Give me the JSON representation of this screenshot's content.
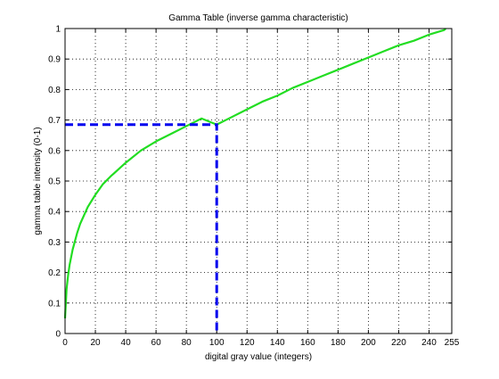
{
  "chart_data": {
    "type": "line",
    "title": "Gamma Table (inverse gamma characteristic)",
    "xlabel": "digital gray value (integers)",
    "ylabel": "gamma table intensity (0-1)",
    "xlim": [
      0,
      255
    ],
    "ylim": [
      0,
      1
    ],
    "xticks": [
      0,
      20,
      40,
      60,
      80,
      100,
      120,
      140,
      160,
      180,
      200,
      220,
      240,
      255
    ],
    "yticks": [
      0,
      0.1,
      0.2,
      0.3,
      0.4,
      0.5,
      0.6,
      0.7,
      0.8,
      0.9,
      1
    ],
    "ytick_labels": [
      "0",
      "0.1",
      "0.2",
      "0.3",
      "0.4",
      "0.5",
      "0.6",
      "0.7",
      "0.8",
      "0.9",
      "1"
    ],
    "grid": true,
    "grid_style": "dotted",
    "series": [
      {
        "color": "#22dd22",
        "style": "solid",
        "x": [
          0,
          1,
          2,
          3,
          5,
          8,
          10,
          15,
          20,
          25,
          30,
          40,
          50,
          60,
          70,
          80,
          90,
          100,
          110,
          120,
          130,
          140,
          150,
          160,
          170,
          180,
          190,
          200,
          210,
          220,
          230,
          240,
          250,
          251
        ],
        "y": [
          0.05,
          0.145,
          0.19,
          0.225,
          0.275,
          0.33,
          0.36,
          0.415,
          0.455,
          0.49,
          0.515,
          0.56,
          0.6,
          0.63,
          0.655,
          0.68,
          0.705,
          0.685,
          0.71,
          0.735,
          0.76,
          0.78,
          0.805,
          0.825,
          0.845,
          0.865,
          0.885,
          0.905,
          0.925,
          0.945,
          0.96,
          0.98,
          0.995,
          1.0
        ]
      }
    ],
    "markers": [
      {
        "color": "#0000ee",
        "style": "dashed",
        "x": [
          0,
          100,
          100
        ],
        "y": [
          0.685,
          0.685,
          0
        ]
      }
    ]
  }
}
